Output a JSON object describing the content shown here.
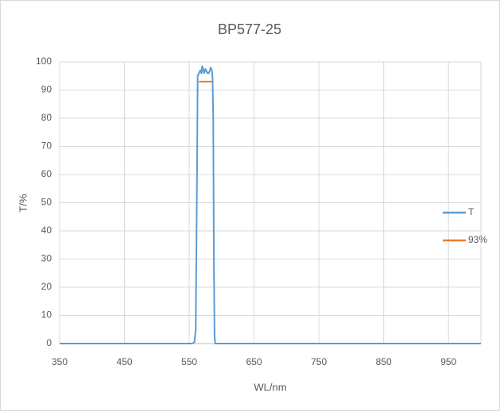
{
  "chart_data": {
    "type": "line",
    "title": "BP577-25",
    "x_label": "WL/nm",
    "y_label": "T/%",
    "xlim": [
      350,
      1000
    ],
    "xticks": [
      350,
      450,
      550,
      650,
      750,
      850,
      950
    ],
    "ylim": [
      0,
      100
    ],
    "yticks": [
      0,
      10,
      20,
      30,
      40,
      50,
      60,
      70,
      80,
      90,
      100
    ],
    "grid": true,
    "legend": "right",
    "series": [
      {
        "name": "T",
        "color": "#5b9bd5",
        "x": [
          350,
          555,
          558,
          560,
          562,
          563,
          565,
          567,
          569,
          570,
          572,
          573,
          575,
          577,
          578,
          580,
          582,
          583,
          585,
          586,
          587,
          588,
          589,
          590,
          600,
          1000
        ],
        "values": [
          0,
          0,
          0.5,
          5,
          60,
          95,
          96,
          97,
          96,
          98.5,
          97,
          96,
          97.5,
          96.5,
          96,
          96,
          97,
          98,
          97,
          94,
          80,
          30,
          3,
          0,
          0,
          0
        ]
      },
      {
        "name": "93%",
        "color": "#ed7d31",
        "x": [
          565,
          585
        ],
        "values": [
          93,
          93
        ]
      }
    ]
  }
}
